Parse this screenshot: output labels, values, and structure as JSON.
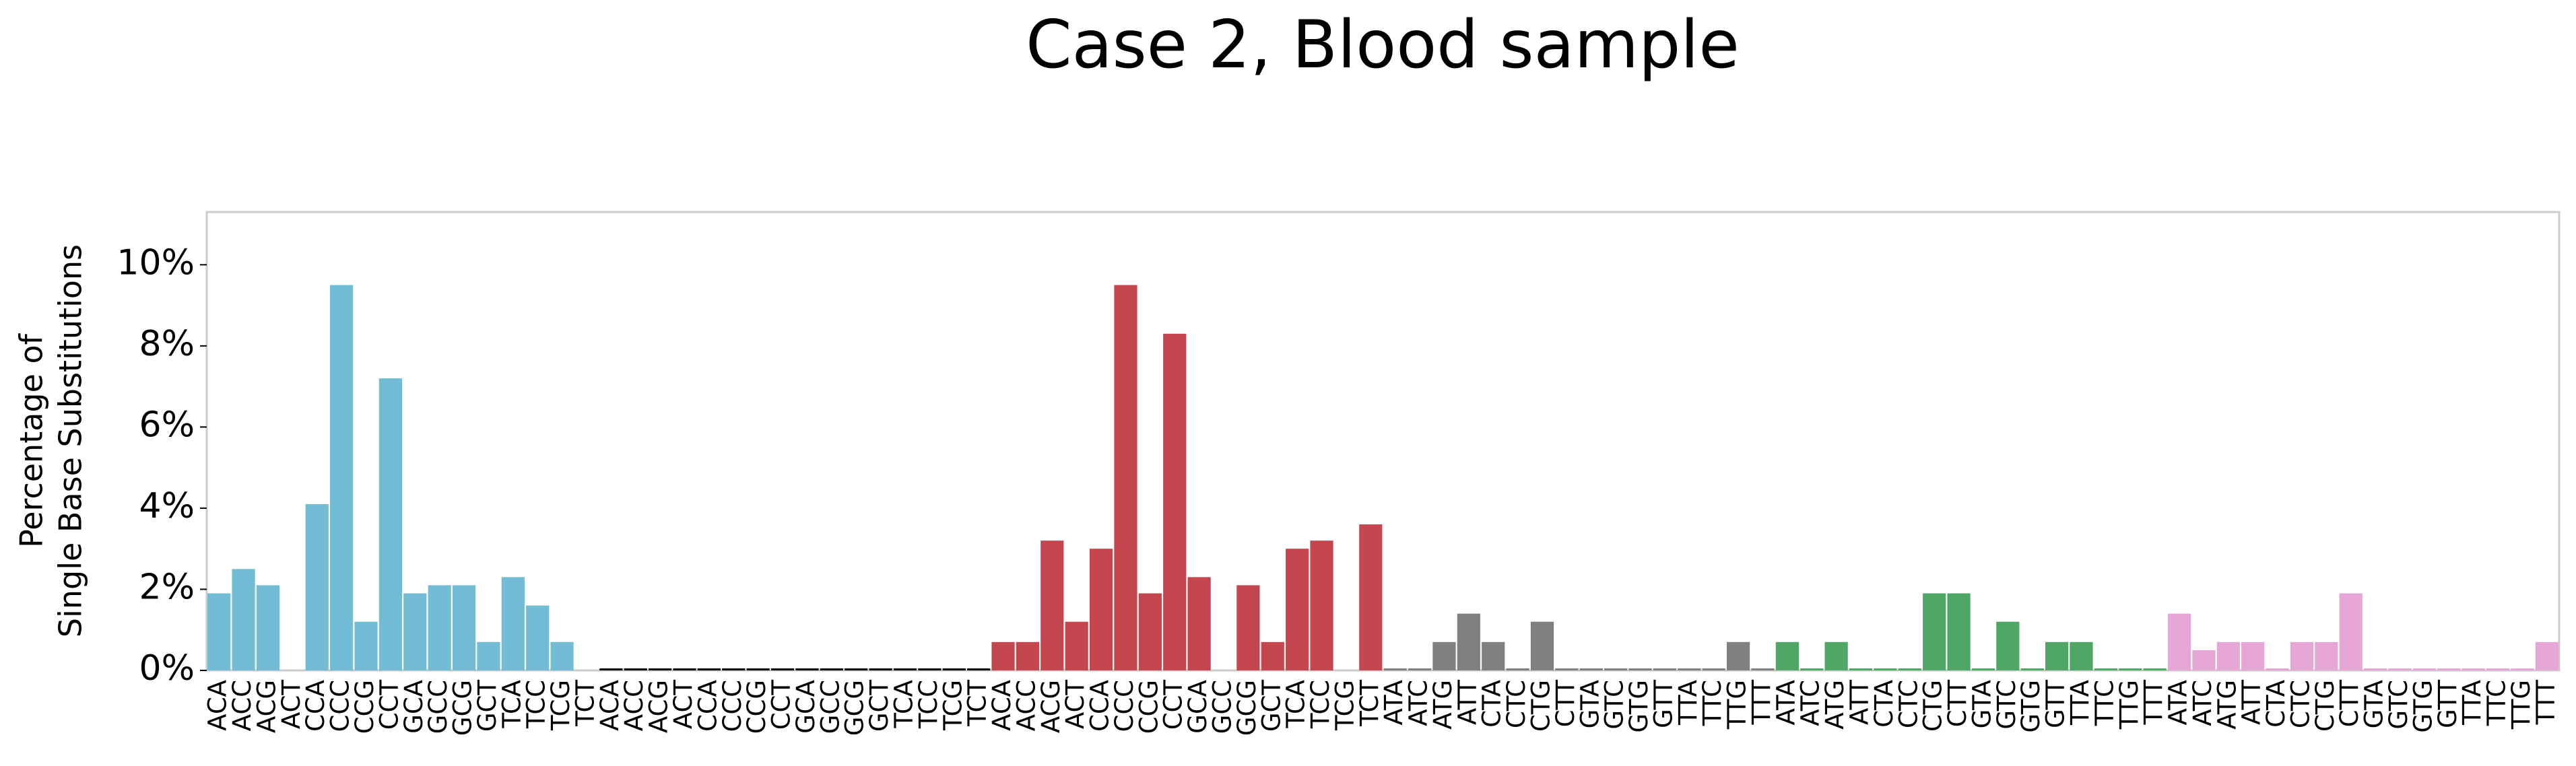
{
  "chart_data": {
    "type": "bar",
    "title": "Case 2, Blood sample",
    "ylabel": [
      "Percentage of",
      "Single Base Substitutions"
    ],
    "categories": [
      "ACA",
      "ACC",
      "ACG",
      "ACT",
      "CCA",
      "CCC",
      "CCG",
      "CCT",
      "GCA",
      "GCC",
      "GCG",
      "GCT",
      "TCA",
      "TCC",
      "TCG",
      "TCT",
      "ACA",
      "ACC",
      "ACG",
      "ACT",
      "CCA",
      "CCC",
      "CCG",
      "CCT",
      "GCA",
      "GCC",
      "GCG",
      "GCT",
      "TCA",
      "TCC",
      "TCG",
      "TCT",
      "ACA",
      "ACC",
      "ACG",
      "ACT",
      "CCA",
      "CCC",
      "CCG",
      "CCT",
      "GCA",
      "GCC",
      "GCG",
      "GCT",
      "TCA",
      "TCC",
      "TCG",
      "TCT",
      "ATA",
      "ATC",
      "ATG",
      "ATT",
      "CTA",
      "CTC",
      "CTG",
      "CTT",
      "GTA",
      "GTC",
      "GTG",
      "GTT",
      "TTA",
      "TTC",
      "TTG",
      "TTT",
      "ATA",
      "ATC",
      "ATG",
      "ATT",
      "CTA",
      "CTC",
      "CTG",
      "CTT",
      "GTA",
      "GTC",
      "GTG",
      "GTT",
      "TTA",
      "TTC",
      "TTG",
      "TTT",
      "ATA",
      "ATC",
      "ATG",
      "ATT",
      "CTA",
      "CTC",
      "CTG",
      "CTT",
      "GTA",
      "GTC",
      "GTG",
      "GTT",
      "TTA",
      "TTC",
      "TTG",
      "TTT"
    ],
    "values": [
      1.9,
      2.5,
      2.1,
      0,
      4.1,
      9.5,
      1.2,
      7.2,
      1.9,
      2.1,
      2.1,
      0.7,
      2.3,
      1.6,
      0.7,
      0,
      0.05,
      0.05,
      0.05,
      0.05,
      0.05,
      0.05,
      0.05,
      0.05,
      0.05,
      0.05,
      0.05,
      0.05,
      0.05,
      0.05,
      0.05,
      0.05,
      0.7,
      0.7,
      3.2,
      1.2,
      3.0,
      9.5,
      1.9,
      8.3,
      2.3,
      0,
      2.1,
      0.7,
      3.0,
      3.2,
      0,
      3.6,
      0.05,
      0.05,
      0.7,
      1.4,
      0.7,
      0.05,
      1.2,
      0.05,
      0.05,
      0.05,
      0.05,
      0.05,
      0.05,
      0.05,
      0.7,
      0.05,
      0.7,
      0.05,
      0.7,
      0.05,
      0.05,
      0.05,
      1.9,
      1.9,
      0.05,
      1.2,
      0.05,
      0.7,
      0.7,
      0.05,
      0.05,
      0.05,
      1.4,
      0.5,
      0.7,
      0.7,
      0.05,
      0.7,
      0.7,
      1.9,
      0.05,
      0.05,
      0.05,
      0.05,
      0.05,
      0.05,
      0.05,
      0.7
    ],
    "group_colors": [
      "#72bcd5",
      "#000000",
      "#c4464f",
      "#808080",
      "#4ea765",
      "#e6a7d6"
    ],
    "ylim": [
      0,
      11.3
    ],
    "yticks": [
      {
        "value": 0,
        "label": "0%"
      },
      {
        "value": 2,
        "label": "2%"
      },
      {
        "value": 4,
        "label": "4%"
      },
      {
        "value": 6,
        "label": "6%"
      },
      {
        "value": 8,
        "label": "8%"
      },
      {
        "value": 10,
        "label": "10%"
      }
    ]
  }
}
